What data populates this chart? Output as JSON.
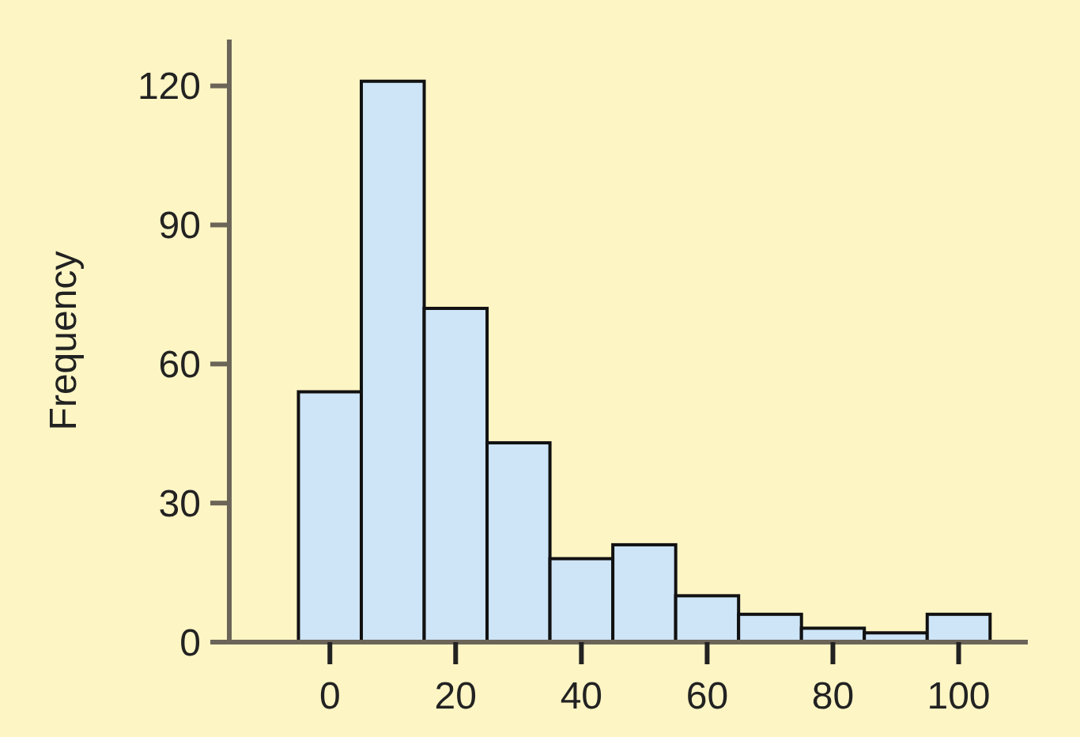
{
  "chart_data": {
    "type": "histogram",
    "ylabel": "Frequency",
    "bins": [
      -5,
      5,
      15,
      25,
      35,
      45,
      55,
      65,
      75,
      85,
      95,
      105
    ],
    "values": [
      54,
      121,
      72,
      43,
      18,
      21,
      10,
      6,
      3,
      2,
      6
    ],
    "color": "#cde5f7",
    "xlim": [
      -16,
      111
    ],
    "xticks": [
      0,
      20,
      40,
      60,
      80,
      100
    ],
    "ylim": [
      0,
      130
    ],
    "yticks": [
      0,
      30,
      60,
      90,
      120
    ],
    "grid": false
  }
}
